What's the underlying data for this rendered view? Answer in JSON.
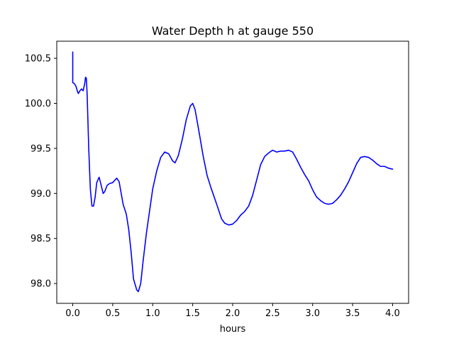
{
  "chart_data": {
    "type": "line",
    "title": "Water Depth h at gauge 550",
    "xlabel": "hours",
    "ylabel": "",
    "xlim": [
      -0.2,
      4.2
    ],
    "ylim": [
      97.78,
      100.69
    ],
    "grid": false,
    "x_ticks": [
      {
        "value": 0.0,
        "label": "0.0"
      },
      {
        "value": 0.5,
        "label": "0.5"
      },
      {
        "value": 1.0,
        "label": "1.0"
      },
      {
        "value": 1.5,
        "label": "1.5"
      },
      {
        "value": 2.0,
        "label": "2.0"
      },
      {
        "value": 2.5,
        "label": "2.5"
      },
      {
        "value": 3.0,
        "label": "3.0"
      },
      {
        "value": 3.5,
        "label": "3.5"
      },
      {
        "value": 4.0,
        "label": "4.0"
      }
    ],
    "y_ticks": [
      {
        "value": 98.0,
        "label": "98.0"
      },
      {
        "value": 98.5,
        "label": "98.5"
      },
      {
        "value": 99.0,
        "label": "99.0"
      },
      {
        "value": 99.5,
        "label": "99.5"
      },
      {
        "value": 100.0,
        "label": "100.0"
      },
      {
        "value": 100.5,
        "label": "100.5"
      }
    ],
    "series": [
      {
        "color": "#0000ff",
        "points": [
          [
            0.0,
            100.57
          ],
          [
            0.0,
            100.23
          ],
          [
            0.02,
            100.22
          ],
          [
            0.04,
            100.19
          ],
          [
            0.06,
            100.13
          ],
          [
            0.07,
            100.11
          ],
          [
            0.09,
            100.14
          ],
          [
            0.11,
            100.16
          ],
          [
            0.13,
            100.14
          ],
          [
            0.15,
            100.22
          ],
          [
            0.16,
            100.29
          ],
          [
            0.17,
            100.28
          ],
          [
            0.18,
            100.1
          ],
          [
            0.2,
            99.5
          ],
          [
            0.22,
            99.05
          ],
          [
            0.24,
            98.86
          ],
          [
            0.26,
            98.86
          ],
          [
            0.28,
            98.96
          ],
          [
            0.3,
            99.12
          ],
          [
            0.33,
            99.18
          ],
          [
            0.35,
            99.11
          ],
          [
            0.38,
            99.0
          ],
          [
            0.4,
            99.02
          ],
          [
            0.43,
            99.09
          ],
          [
            0.46,
            99.11
          ],
          [
            0.5,
            99.12
          ],
          [
            0.55,
            99.17
          ],
          [
            0.58,
            99.13
          ],
          [
            0.6,
            99.03
          ],
          [
            0.63,
            98.88
          ],
          [
            0.67,
            98.77
          ],
          [
            0.7,
            98.6
          ],
          [
            0.73,
            98.35
          ],
          [
            0.76,
            98.05
          ],
          [
            0.8,
            97.93
          ],
          [
            0.82,
            97.91
          ],
          [
            0.85,
            98.0
          ],
          [
            0.88,
            98.25
          ],
          [
            0.92,
            98.55
          ],
          [
            0.96,
            98.8
          ],
          [
            1.0,
            99.05
          ],
          [
            1.05,
            99.25
          ],
          [
            1.1,
            99.4
          ],
          [
            1.15,
            99.46
          ],
          [
            1.2,
            99.44
          ],
          [
            1.25,
            99.36
          ],
          [
            1.28,
            99.34
          ],
          [
            1.32,
            99.42
          ],
          [
            1.37,
            99.6
          ],
          [
            1.42,
            99.82
          ],
          [
            1.47,
            99.97
          ],
          [
            1.5,
            100.0
          ],
          [
            1.53,
            99.93
          ],
          [
            1.58,
            99.68
          ],
          [
            1.63,
            99.42
          ],
          [
            1.68,
            99.2
          ],
          [
            1.73,
            99.06
          ],
          [
            1.8,
            98.88
          ],
          [
            1.86,
            98.72
          ],
          [
            1.9,
            98.67
          ],
          [
            1.95,
            98.65
          ],
          [
            2.0,
            98.66
          ],
          [
            2.05,
            98.7
          ],
          [
            2.1,
            98.76
          ],
          [
            2.15,
            98.8
          ],
          [
            2.2,
            98.86
          ],
          [
            2.25,
            98.98
          ],
          [
            2.3,
            99.15
          ],
          [
            2.35,
            99.32
          ],
          [
            2.4,
            99.41
          ],
          [
            2.45,
            99.45
          ],
          [
            2.5,
            99.48
          ],
          [
            2.55,
            99.46
          ],
          [
            2.6,
            99.47
          ],
          [
            2.65,
            99.47
          ],
          [
            2.7,
            99.48
          ],
          [
            2.75,
            99.46
          ],
          [
            2.8,
            99.38
          ],
          [
            2.85,
            99.29
          ],
          [
            2.9,
            99.21
          ],
          [
            2.95,
            99.14
          ],
          [
            3.0,
            99.04
          ],
          [
            3.05,
            98.96
          ],
          [
            3.1,
            98.92
          ],
          [
            3.15,
            98.89
          ],
          [
            3.2,
            98.88
          ],
          [
            3.25,
            98.89
          ],
          [
            3.3,
            98.93
          ],
          [
            3.35,
            98.98
          ],
          [
            3.4,
            99.05
          ],
          [
            3.45,
            99.13
          ],
          [
            3.5,
            99.23
          ],
          [
            3.55,
            99.33
          ],
          [
            3.6,
            99.4
          ],
          [
            3.65,
            99.41
          ],
          [
            3.7,
            99.4
          ],
          [
            3.75,
            99.37
          ],
          [
            3.8,
            99.33
          ],
          [
            3.85,
            99.3
          ],
          [
            3.9,
            99.3
          ],
          [
            3.95,
            99.28
          ],
          [
            4.0,
            99.27
          ]
        ]
      }
    ]
  }
}
